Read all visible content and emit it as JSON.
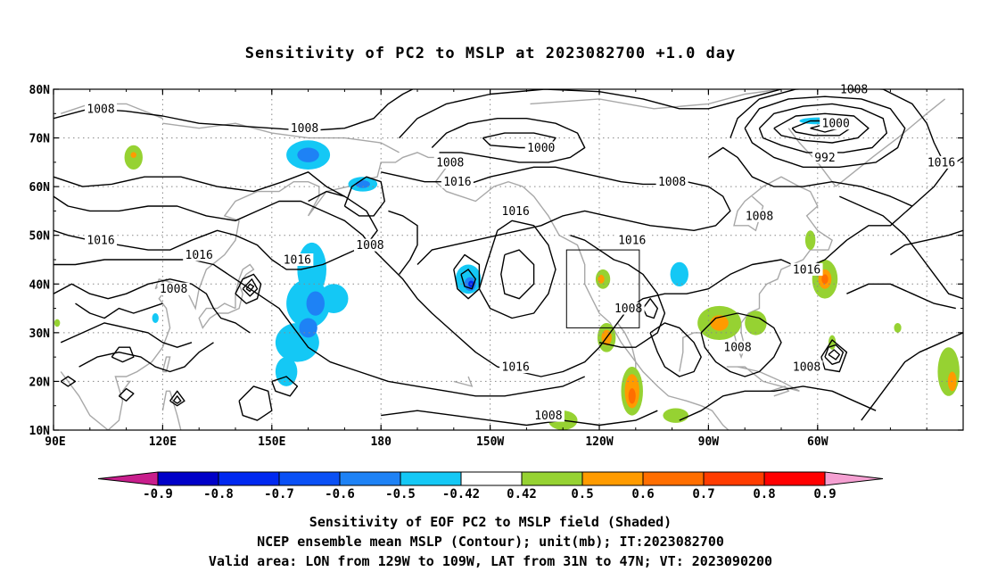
{
  "title": "Sensitivity of PC2 to MSLP at 2023082700 +1.0 day",
  "map": {
    "lon_labels": [
      "90E",
      "120E",
      "150E",
      "180",
      "150W",
      "120W",
      "90W",
      "60W"
    ],
    "lat_labels": [
      "80N",
      "70N",
      "60N",
      "50N",
      "40N",
      "30N",
      "20N",
      "10N"
    ],
    "lon_range": [
      90,
      340
    ],
    "lat_range": [
      10,
      80
    ],
    "grid": "dotted",
    "contour_labels": [
      {
        "text": "1008",
        "lon": 103,
        "lat": 76
      },
      {
        "text": "1008",
        "lon": 159,
        "lat": 72
      },
      {
        "text": "1000",
        "lon": 224,
        "lat": 68
      },
      {
        "text": "1008",
        "lon": 310,
        "lat": 80
      },
      {
        "text": "1000",
        "lon": 305,
        "lat": 73
      },
      {
        "text": "992",
        "lon": 302,
        "lat": 66
      },
      {
        "text": "1016",
        "lon": 334,
        "lat": 65
      },
      {
        "text": "1008",
        "lon": 199,
        "lat": 65
      },
      {
        "text": "1016",
        "lon": 201,
        "lat": 61
      },
      {
        "text": "1008",
        "lon": 260,
        "lat": 61
      },
      {
        "text": "1016",
        "lon": 217,
        "lat": 55
      },
      {
        "text": "1008",
        "lon": 284,
        "lat": 54
      },
      {
        "text": "1016",
        "lon": 103,
        "lat": 49
      },
      {
        "text": "1016",
        "lon": 130,
        "lat": 46
      },
      {
        "text": "1008",
        "lon": 177,
        "lat": 48
      },
      {
        "text": "1016",
        "lon": 157,
        "lat": 45
      },
      {
        "text": "1016",
        "lon": 249,
        "lat": 49
      },
      {
        "text": "1016",
        "lon": 297,
        "lat": 43
      },
      {
        "text": "1008",
        "lon": 123,
        "lat": 39
      },
      {
        "text": "1008",
        "lon": 248,
        "lat": 35
      },
      {
        "text": "1008",
        "lon": 278,
        "lat": 27
      },
      {
        "text": "1008",
        "lon": 297,
        "lat": 23
      },
      {
        "text": "1016",
        "lon": 217,
        "lat": 23
      },
      {
        "text": "1008",
        "lon": 226,
        "lat": 13
      }
    ],
    "valid_box": {
      "lon": [
        231,
        251
      ],
      "lat": [
        31,
        47
      ]
    }
  },
  "colorbar": {
    "labels": [
      "-0.9",
      "-0.8",
      "-0.7",
      "-0.6",
      "-0.5",
      "-0.42",
      "0.42",
      "0.5",
      "0.6",
      "0.7",
      "0.8",
      "0.9"
    ],
    "colors": [
      "#c81e8c",
      "#0000c8",
      "#0028f0",
      "#0a50f5",
      "#1e82f5",
      "#14c8f5",
      "#ffffff",
      "#96d232",
      "#ff9b00",
      "#ff6e00",
      "#ff3c00",
      "#ff0000",
      "#f5a0d2"
    ]
  },
  "footer": {
    "line1": "Sensitivity of EOF PC2 to MSLP field (Shaded)",
    "line2": "NCEP ensemble mean MSLP (Contour); unit(mb); IT:2023082700",
    "line3": "Valid area: LON from 129W to 109W, LAT from 31N to 47N; VT: 2023090200"
  }
}
